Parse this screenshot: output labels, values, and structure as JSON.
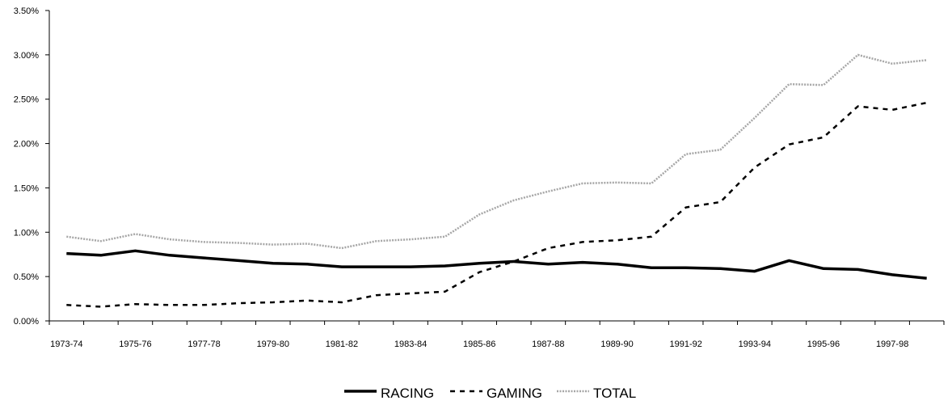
{
  "chart_data": {
    "type": "line",
    "title": "",
    "xlabel": "",
    "ylabel": "",
    "categories": [
      "1973-74",
      "1974-75",
      "1975-76",
      "1976-77",
      "1977-78",
      "1978-79",
      "1979-80",
      "1980-81",
      "1981-82",
      "1982-83",
      "1983-84",
      "1984-85",
      "1985-86",
      "1986-87",
      "1987-88",
      "1988-89",
      "1989-90",
      "1990-91",
      "1991-92",
      "1992-93",
      "1993-94",
      "1994-95",
      "1995-96",
      "1996-97",
      "1997-98",
      "1998-99"
    ],
    "x_tick_labels": [
      "1973-74",
      "1975-76",
      "1977-78",
      "1979-80",
      "1981-82",
      "1983-84",
      "1985-86",
      "1987-88",
      "1989-90",
      "1991-92",
      "1993-94",
      "1995-96",
      "1997-98"
    ],
    "y_tick_labels": [
      "0.00%",
      "0.50%",
      "1.00%",
      "1.50%",
      "2.00%",
      "2.50%",
      "3.00%",
      "3.50%"
    ],
    "ylim": [
      0,
      3.5
    ],
    "y_unit": "%",
    "grid": false,
    "legend_position": "bottom",
    "series": [
      {
        "name": "RACING",
        "color": "#000000",
        "style": "solid",
        "values": [
          0.76,
          0.74,
          0.79,
          0.74,
          0.71,
          0.68,
          0.65,
          0.64,
          0.61,
          0.61,
          0.61,
          0.62,
          0.65,
          0.67,
          0.64,
          0.66,
          0.64,
          0.6,
          0.6,
          0.59,
          0.56,
          0.68,
          0.59,
          0.58,
          0.52,
          0.48
        ]
      },
      {
        "name": "GAMING",
        "color": "#000000",
        "style": "dashed",
        "values": [
          0.18,
          0.16,
          0.19,
          0.18,
          0.18,
          0.2,
          0.21,
          0.23,
          0.21,
          0.29,
          0.31,
          0.33,
          0.55,
          0.67,
          0.82,
          0.89,
          0.91,
          0.95,
          1.28,
          1.34,
          1.73,
          1.99,
          2.07,
          2.42,
          2.38,
          2.46
        ]
      },
      {
        "name": "TOTAL",
        "color": "#a6a6a6",
        "style": "dotted",
        "values": [
          0.95,
          0.9,
          0.98,
          0.92,
          0.89,
          0.88,
          0.86,
          0.87,
          0.82,
          0.9,
          0.92,
          0.95,
          1.2,
          1.36,
          1.46,
          1.55,
          1.56,
          1.55,
          1.88,
          1.93,
          2.29,
          2.67,
          2.66,
          3.0,
          2.9,
          2.94
        ]
      }
    ]
  }
}
